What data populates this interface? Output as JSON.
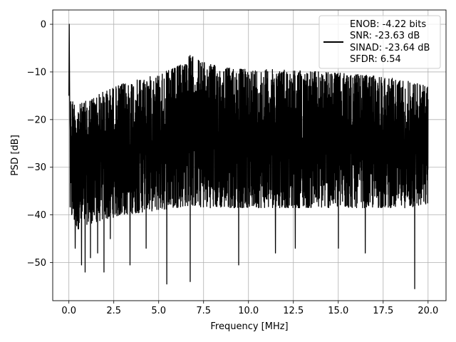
{
  "chart_data": {
    "type": "line",
    "xlabel": "Frequency [MHz]",
    "ylabel": "PSD [dB]",
    "xlim": [
      -0.9,
      21.0
    ],
    "ylim": [
      -58,
      3
    ],
    "xticks": [
      0.0,
      2.5,
      5.0,
      7.5,
      10.0,
      12.5,
      15.0,
      17.5,
      20.0
    ],
    "xtick_labels": [
      "0.0",
      "2.5",
      "5.0",
      "7.5",
      "10.0",
      "12.5",
      "15.0",
      "17.5",
      "20.0"
    ],
    "yticks": [
      0,
      -10,
      -20,
      -30,
      -40,
      -50
    ],
    "ytick_labels": [
      "0",
      "−10",
      "−20",
      "−30",
      "−40",
      "−50"
    ],
    "grid": true,
    "legend_position": "top-right",
    "series_color": "#000000",
    "series": [
      {
        "name": "",
        "legend_lines": [
          "ENOB: -4.22 bits",
          "SNR: -23.63 dB",
          "SINAD: -23.64 dB",
          "SFDR: 6.54"
        ],
        "x_range": [
          0.0,
          20.0
        ],
        "spike": {
          "x": 0.02,
          "y": 0.0
        },
        "envelope_x": [
          0.0,
          0.5,
          1.0,
          2.0,
          3.0,
          4.0,
          5.0,
          6.0,
          6.75,
          7.5,
          8.5,
          10.0,
          12.0,
          14.0,
          16.0,
          17.5,
          19.0,
          20.0
        ],
        "envelope_top": [
          -15,
          -17,
          -16,
          -14,
          -12.5,
          -11.5,
          -10.5,
          -9,
          -6.5,
          -8,
          -9,
          -9.5,
          -9.5,
          -10,
          -10.5,
          -11,
          -12,
          -13
        ],
        "envelope_bottom": [
          -40,
          -43,
          -42,
          -41,
          -40,
          -39.5,
          -39,
          -38.5,
          -38,
          -38.5,
          -38.5,
          -38.5,
          -38.5,
          -38.5,
          -38.5,
          -38.5,
          -38.5,
          -38
        ],
        "deep_dips": [
          {
            "x": 0.35,
            "y": -47
          },
          {
            "x": 0.7,
            "y": -50.5
          },
          {
            "x": 0.9,
            "y": -52
          },
          {
            "x": 1.2,
            "y": -49
          },
          {
            "x": 1.6,
            "y": -48
          },
          {
            "x": 1.95,
            "y": -52
          },
          {
            "x": 2.3,
            "y": -45
          },
          {
            "x": 3.4,
            "y": -50.5
          },
          {
            "x": 4.3,
            "y": -47
          },
          {
            "x": 5.45,
            "y": -54.5
          },
          {
            "x": 6.75,
            "y": -54
          },
          {
            "x": 9.45,
            "y": -50.5
          },
          {
            "x": 11.5,
            "y": -48
          },
          {
            "x": 12.6,
            "y": -47
          },
          {
            "x": 15.0,
            "y": -47
          },
          {
            "x": 16.5,
            "y": -48
          },
          {
            "x": 19.25,
            "y": -55.5
          }
        ]
      }
    ]
  }
}
